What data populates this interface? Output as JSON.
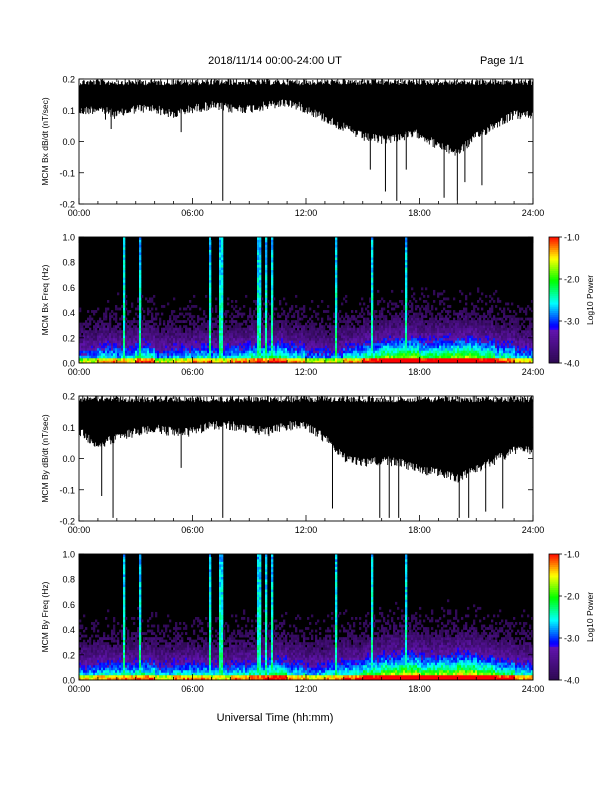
{
  "header": {
    "title": "2018/11/14   00:00-24:00 UT",
    "page": "Page 1/1"
  },
  "xlabel": "Universal Time (hh:mm)",
  "chart_data": [
    {
      "type": "line",
      "ylabel": "MCM Bx dB/dt (nT/sec)",
      "ylim": [
        -0.2,
        0.2
      ],
      "yticks": [
        "-0.2",
        "-0.1",
        "0.0",
        "0.1",
        "0.2"
      ],
      "xticks": [
        "00:00",
        "06:00",
        "12:00",
        "18:00",
        "24:00"
      ],
      "x_range_hours": [
        0,
        24
      ],
      "series_color": "#000000",
      "envelope_upper": 0.2,
      "envelope_lower_by_hour": [
        0.11,
        0.12,
        0.1,
        0.12,
        0.12,
        0.1,
        0.12,
        0.13,
        0.12,
        0.12,
        0.13,
        0.14,
        0.12,
        0.09,
        0.06,
        0.03,
        0.02,
        0.03,
        0.04,
        0.0,
        -0.02,
        0.03,
        0.07,
        0.1
      ],
      "spikes": [
        {
          "t": 1.4,
          "v": 0.07
        },
        {
          "t": 1.7,
          "v": 0.04
        },
        {
          "t": 5.4,
          "v": 0.03
        },
        {
          "t": 7.6,
          "v": -0.19
        },
        {
          "t": 15.4,
          "v": -0.09
        },
        {
          "t": 16.2,
          "v": -0.16
        },
        {
          "t": 16.8,
          "v": -0.19
        },
        {
          "t": 17.3,
          "v": -0.09
        },
        {
          "t": 19.3,
          "v": -0.18
        },
        {
          "t": 20.0,
          "v": -0.19
        },
        {
          "t": 20.4,
          "v": -0.13
        },
        {
          "t": 21.3,
          "v": -0.14
        }
      ]
    },
    {
      "type": "heatmap",
      "ylabel": "MCM Bx Freq (Hz)",
      "ylim": [
        0.0,
        1.0
      ],
      "yticks": [
        "0.0",
        "0.2",
        "0.4",
        "0.6",
        "0.8",
        "1.0"
      ],
      "xticks": [
        "00:00",
        "06:00",
        "12:00",
        "18:00",
        "24:00"
      ],
      "x_range_hours": [
        0,
        24
      ],
      "colorbar": {
        "label": "Log10 Power",
        "ticks": [
          "-1.0",
          "-2.0",
          "-3.0",
          "-4.0"
        ],
        "range": [
          -4.0,
          -1.0
        ]
      },
      "activity_by_hour": [
        0.45,
        0.55,
        0.5,
        0.6,
        0.45,
        0.5,
        0.55,
        0.5,
        0.55,
        0.6,
        0.65,
        0.55,
        0.45,
        0.45,
        0.55,
        0.65,
        0.75,
        0.8,
        0.7,
        0.75,
        0.8,
        0.7,
        0.6,
        0.5
      ],
      "bright_lines_hours": [
        2.4,
        3.2,
        6.9,
        7.5,
        9.5,
        9.9,
        10.2,
        13.6,
        15.5,
        17.3
      ]
    },
    {
      "type": "line",
      "ylabel": "MCM By dB/dt (nT/sec)",
      "ylim": [
        -0.2,
        0.2
      ],
      "yticks": [
        "-0.2",
        "-0.1",
        "0.0",
        "0.1",
        "0.2"
      ],
      "xticks": [
        "00:00",
        "06:00",
        "12:00",
        "18:00",
        "24:00"
      ],
      "x_range_hours": [
        0,
        24
      ],
      "series_color": "#000000",
      "envelope_upper": 0.2,
      "envelope_lower_by_hour": [
        0.1,
        0.06,
        0.08,
        0.1,
        0.11,
        0.1,
        0.1,
        0.12,
        0.12,
        0.11,
        0.1,
        0.12,
        0.12,
        0.08,
        0.02,
        0.0,
        0.01,
        0.0,
        -0.02,
        -0.03,
        -0.05,
        -0.02,
        0.01,
        0.04
      ],
      "spikes": [
        {
          "t": 1.2,
          "v": -0.12
        },
        {
          "t": 1.8,
          "v": -0.19
        },
        {
          "t": 5.4,
          "v": -0.03
        },
        {
          "t": 7.6,
          "v": -0.19
        },
        {
          "t": 13.4,
          "v": -0.16
        },
        {
          "t": 15.9,
          "v": -0.19
        },
        {
          "t": 16.4,
          "v": -0.19
        },
        {
          "t": 16.9,
          "v": -0.19
        },
        {
          "t": 20.1,
          "v": -0.19
        },
        {
          "t": 20.6,
          "v": -0.19
        },
        {
          "t": 21.5,
          "v": -0.17
        },
        {
          "t": 22.4,
          "v": -0.16
        }
      ]
    },
    {
      "type": "heatmap",
      "ylabel": "MCM By Freq (Hz)",
      "ylim": [
        0.0,
        1.0
      ],
      "yticks": [
        "0.0",
        "0.2",
        "0.4",
        "0.6",
        "0.8",
        "1.0"
      ],
      "xticks": [
        "00:00",
        "06:00",
        "12:00",
        "18:00",
        "24:00"
      ],
      "x_range_hours": [
        0,
        24
      ],
      "colorbar": {
        "label": "Log10 Power",
        "ticks": [
          "-1.0",
          "-2.0",
          "-3.0",
          "-4.0"
        ],
        "range": [
          -4.0,
          -1.0
        ]
      },
      "activity_by_hour": [
        0.5,
        0.55,
        0.55,
        0.6,
        0.5,
        0.55,
        0.55,
        0.5,
        0.55,
        0.6,
        0.65,
        0.55,
        0.5,
        0.55,
        0.6,
        0.7,
        0.8,
        0.85,
        0.75,
        0.8,
        0.85,
        0.75,
        0.65,
        0.55
      ],
      "bright_lines_hours": [
        2.4,
        3.2,
        6.9,
        7.5,
        9.5,
        9.9,
        10.2,
        13.6,
        15.5,
        17.3
      ]
    }
  ]
}
